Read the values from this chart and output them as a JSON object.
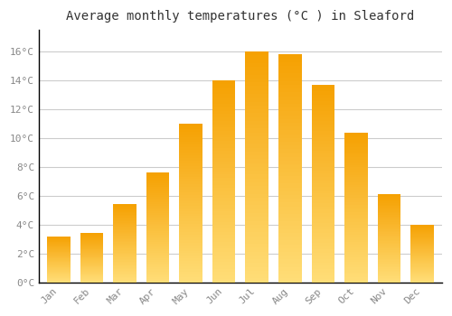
{
  "title": "Average monthly temperatures (°C ) in Sleaford",
  "months": [
    "Jan",
    "Feb",
    "Mar",
    "Apr",
    "May",
    "Jun",
    "Jul",
    "Aug",
    "Sep",
    "Oct",
    "Nov",
    "Dec"
  ],
  "values": [
    3.2,
    3.4,
    5.4,
    7.6,
    11.0,
    14.0,
    16.0,
    15.8,
    13.7,
    10.4,
    6.1,
    4.0
  ],
  "bar_color_dark": "#F5A800",
  "bar_color_light": "#FFD966",
  "yticks": [
    0,
    2,
    4,
    6,
    8,
    10,
    12,
    14,
    16
  ],
  "ytick_labels": [
    "0°C",
    "2°C",
    "4°C",
    "6°C",
    "8°C",
    "10°C",
    "12°C",
    "14°C",
    "16°C"
  ],
  "ylim": [
    0,
    17.5
  ],
  "background_color": "#FFFFFF",
  "grid_color": "#CCCCCC",
  "title_fontsize": 10,
  "tick_fontsize": 8,
  "font_family": "monospace"
}
